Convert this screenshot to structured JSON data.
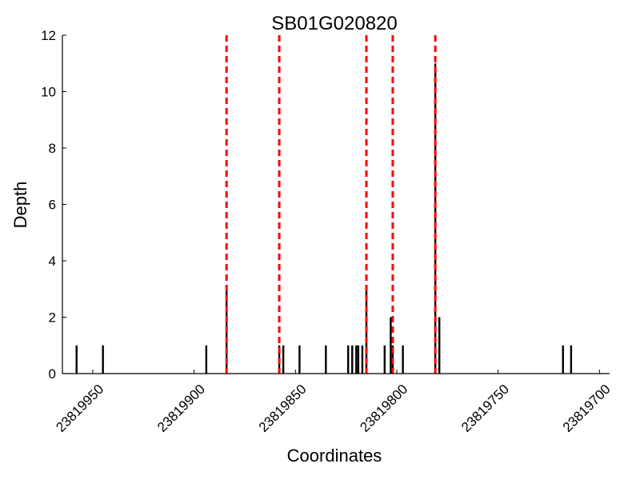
{
  "chart_data": {
    "type": "bar",
    "title": "SB01G020820",
    "xlabel": "Coordinates",
    "ylabel": "Depth",
    "xlim": [
      23819965,
      23819695
    ],
    "ylim": [
      0,
      12
    ],
    "x_reversed": true,
    "xticks": [
      23819950,
      23819900,
      23819850,
      23819800,
      23819750,
      23819700
    ],
    "yticks": [
      0,
      2,
      4,
      6,
      8,
      10,
      12
    ],
    "grid": false,
    "bar_color": "#000000",
    "marker_color": "#ff0000",
    "bars": [
      {
        "x": 23819958,
        "depth": 1
      },
      {
        "x": 23819945,
        "depth": 1
      },
      {
        "x": 23819894,
        "depth": 1
      },
      {
        "x": 23819884,
        "depth": 3
      },
      {
        "x": 23819858,
        "depth": 1
      },
      {
        "x": 23819856,
        "depth": 1
      },
      {
        "x": 23819848,
        "depth": 1
      },
      {
        "x": 23819835,
        "depth": 1
      },
      {
        "x": 23819824,
        "depth": 1
      },
      {
        "x": 23819822,
        "depth": 1
      },
      {
        "x": 23819820,
        "depth": 1
      },
      {
        "x": 23819819,
        "depth": 1
      },
      {
        "x": 23819817,
        "depth": 1
      },
      {
        "x": 23819815,
        "depth": 3
      },
      {
        "x": 23819806,
        "depth": 1
      },
      {
        "x": 23819803,
        "depth": 2
      },
      {
        "x": 23819802,
        "depth": 1
      },
      {
        "x": 23819797,
        "depth": 1
      },
      {
        "x": 23819781,
        "depth": 11
      },
      {
        "x": 23819779,
        "depth": 2
      },
      {
        "x": 23819718,
        "depth": 1
      },
      {
        "x": 23819714,
        "depth": 1
      }
    ],
    "markers": [
      23819884,
      23819858,
      23819815,
      23819802,
      23819781
    ]
  }
}
